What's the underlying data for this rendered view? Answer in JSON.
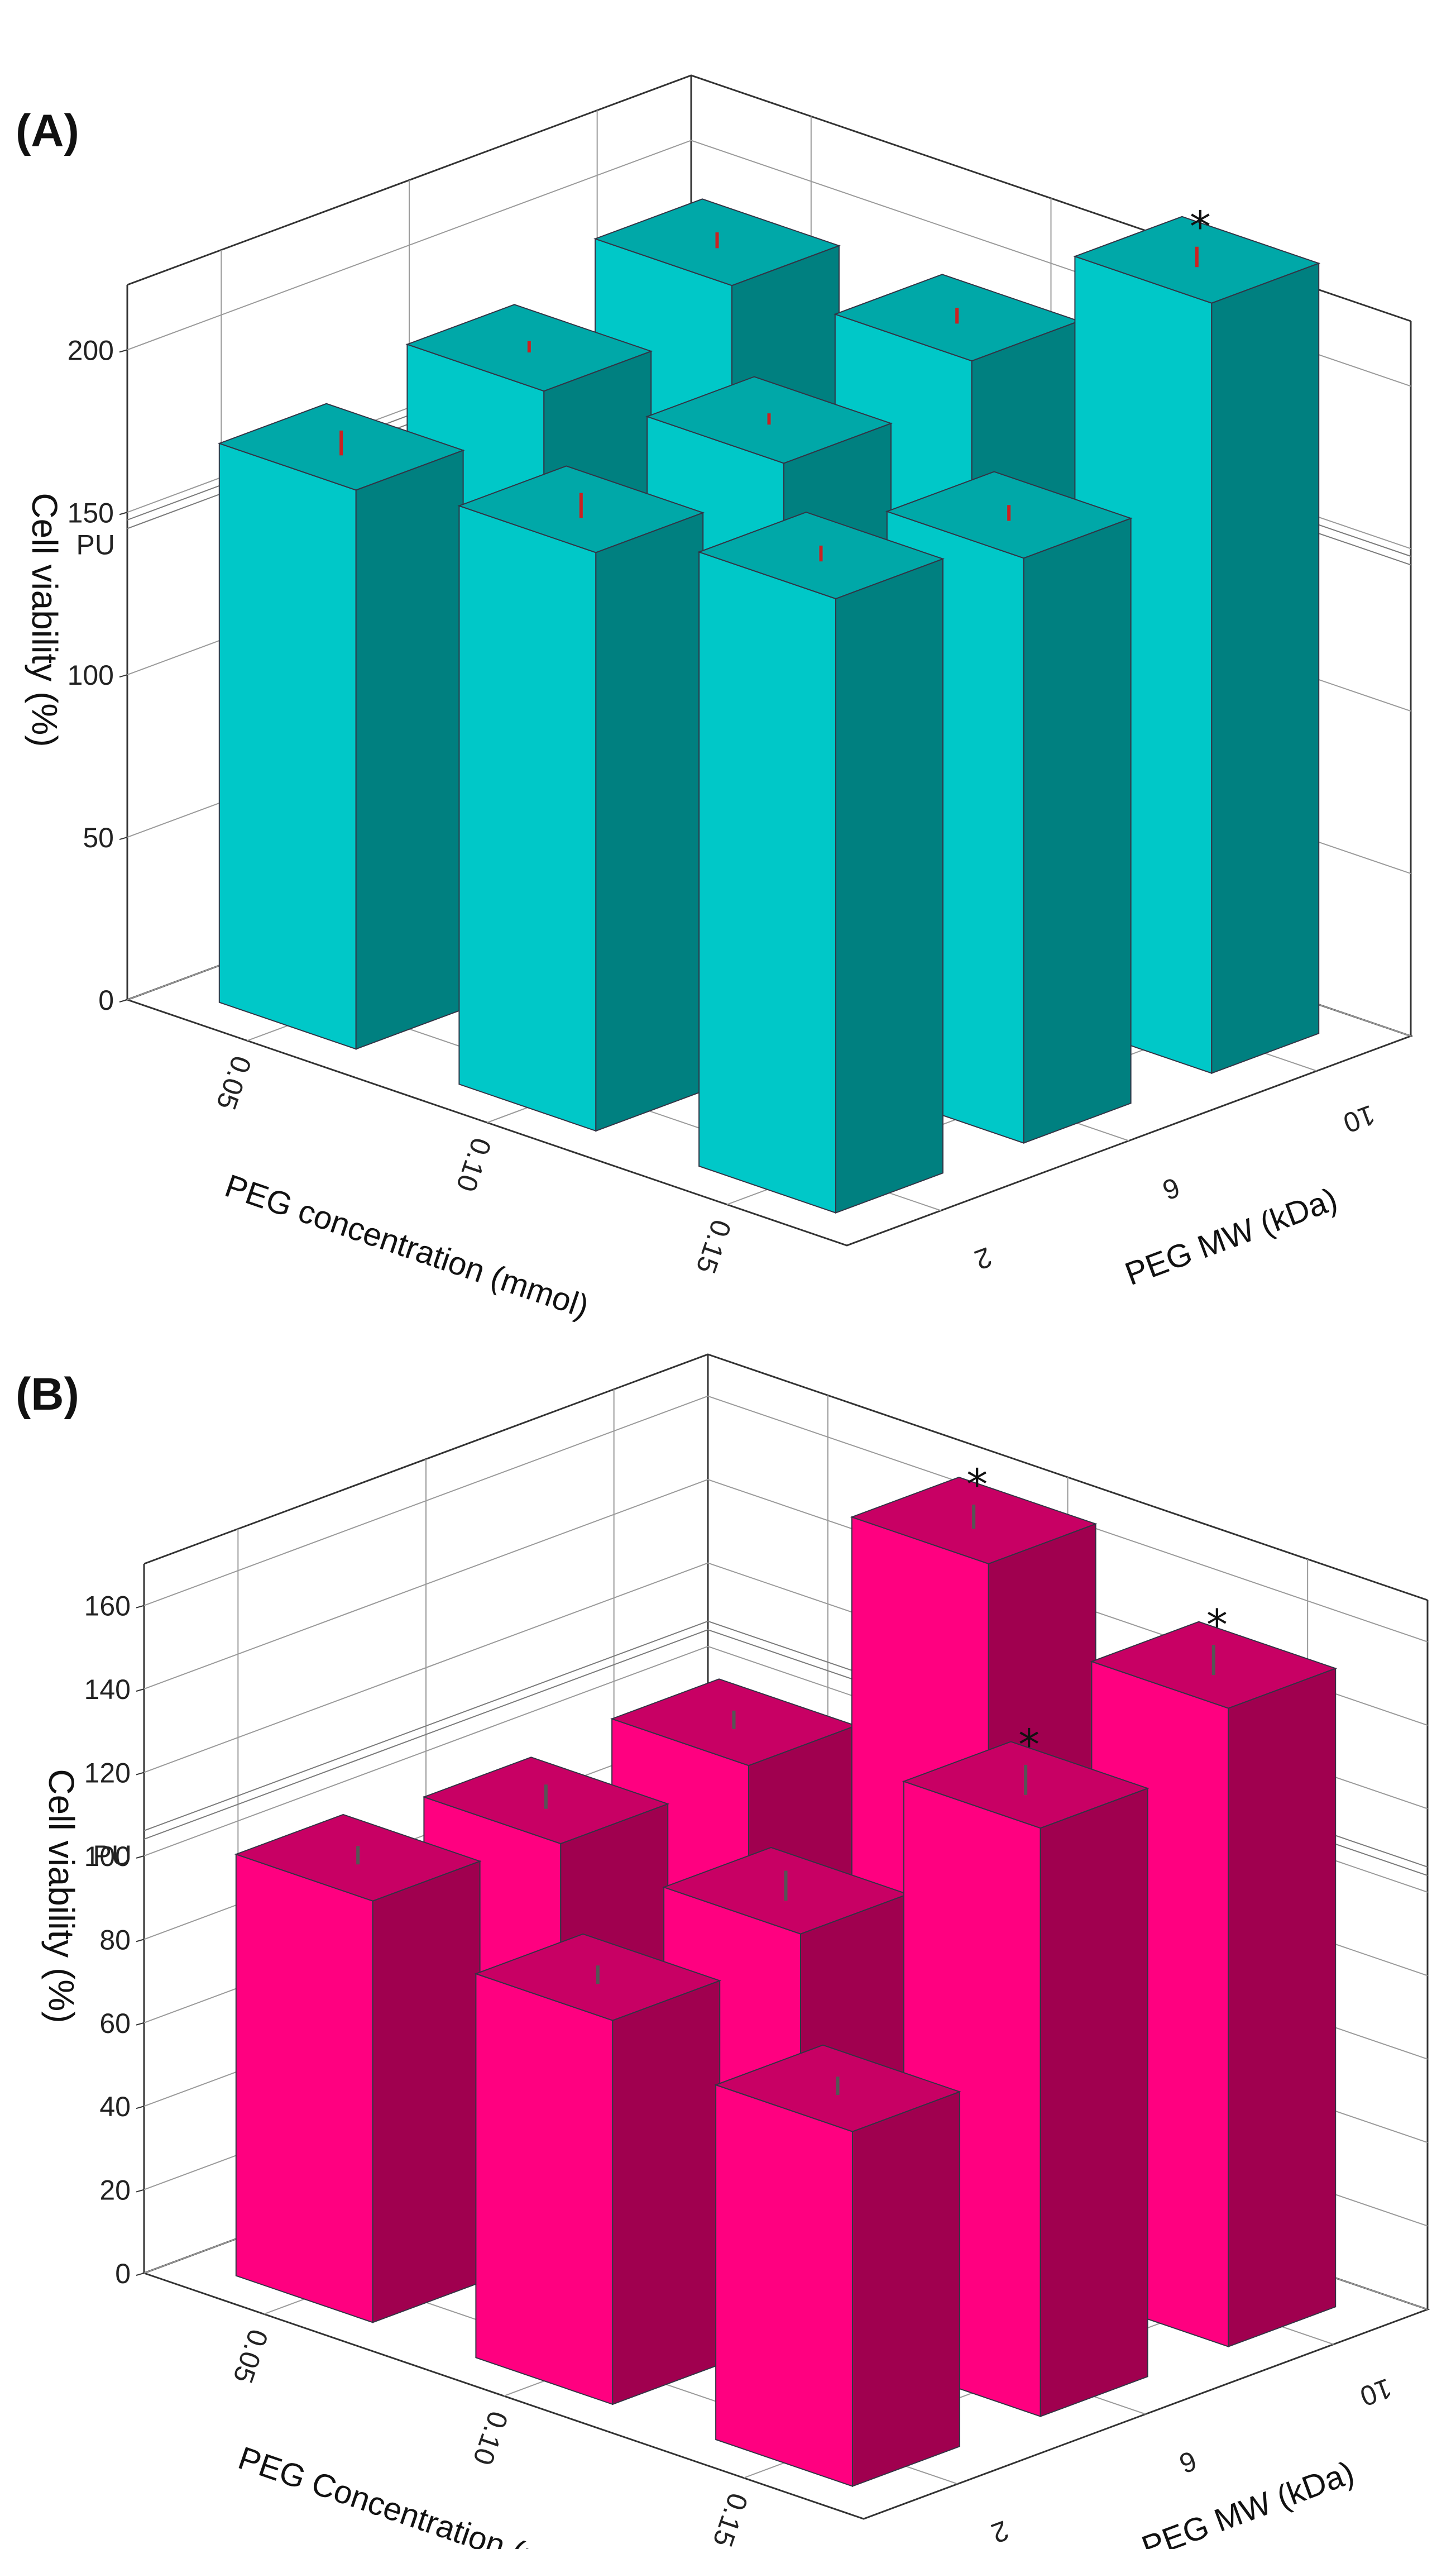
{
  "chart_data": [
    {
      "type": "bar3d",
      "panel_label": "(A)",
      "ylabel": "Cell viability (%)",
      "xlabel": "PEG concentration (mmol)",
      "zlabel": "PEG MW (kDa)",
      "x_categories": [
        "0.05",
        "0.10",
        "0.15"
      ],
      "z_categories": [
        "2",
        "6",
        "10"
      ],
      "ylim": [
        0,
        220
      ],
      "yticks": [
        0,
        50,
        100,
        150,
        200
      ],
      "reference": {
        "label": "PU",
        "value": 145
      },
      "colors": {
        "front": "#00c8c8",
        "side": "#008080",
        "top": "#00a8a8",
        "error": "#cc2020"
      },
      "bars": [
        {
          "conc": "0.05",
          "mw": "2",
          "value": 172,
          "error": 4,
          "significant": false
        },
        {
          "conc": "0.05",
          "mw": "6",
          "value": 181,
          "error": 1,
          "significant": false
        },
        {
          "conc": "0.05",
          "mw": "10",
          "value": 192,
          "error": 2,
          "significant": false
        },
        {
          "conc": "0.10",
          "mw": "2",
          "value": 178,
          "error": 4,
          "significant": false
        },
        {
          "conc": "0.10",
          "mw": "6",
          "value": 184,
          "error": 1,
          "significant": false
        },
        {
          "conc": "0.10",
          "mw": "10",
          "value": 194,
          "error": 2,
          "significant": false
        },
        {
          "conc": "0.15",
          "mw": "2",
          "value": 189,
          "error": 2,
          "significant": false
        },
        {
          "conc": "0.15",
          "mw": "6",
          "value": 180,
          "error": 2,
          "significant": false
        },
        {
          "conc": "0.15",
          "mw": "10",
          "value": 237,
          "error": 3,
          "significant": true
        }
      ],
      "significance_marker": "*"
    },
    {
      "type": "bar3d",
      "panel_label": "(B)",
      "ylabel": "Cell viability (%)",
      "xlabel": "PEG Concentration (mmol)",
      "zlabel": "PEG MW (kDa)",
      "x_categories": [
        "0.05",
        "0.10",
        "0.15"
      ],
      "z_categories": [
        "2",
        "6",
        "10"
      ],
      "ylim": [
        0,
        170
      ],
      "yticks": [
        0,
        20,
        40,
        60,
        80,
        100,
        120,
        140,
        160
      ],
      "reference": {
        "label": "PU",
        "value": 104
      },
      "colors": {
        "front": "#ff0080",
        "side": "#a0004f",
        "top": "#c80064",
        "error": "#555555"
      },
      "bars": [
        {
          "conc": "0.05",
          "mw": "2",
          "value": 101,
          "error": 2,
          "significant": false
        },
        {
          "conc": "0.05",
          "mw": "6",
          "value": 98,
          "error": 3,
          "significant": false
        },
        {
          "conc": "0.05",
          "mw": "10",
          "value": 100,
          "error": 2,
          "significant": false
        },
        {
          "conc": "0.10",
          "mw": "2",
          "value": 92,
          "error": 2,
          "significant": false
        },
        {
          "conc": "0.10",
          "mw": "6",
          "value": 96,
          "error": 4,
          "significant": false
        },
        {
          "conc": "0.10",
          "mw": "10",
          "value": 168,
          "error": 3,
          "significant": true
        },
        {
          "conc": "0.15",
          "mw": "2",
          "value": 85,
          "error": 2,
          "significant": false
        },
        {
          "conc": "0.15",
          "mw": "6",
          "value": 141,
          "error": 4,
          "significant": true
        },
        {
          "conc": "0.15",
          "mw": "10",
          "value": 153,
          "error": 4,
          "significant": true
        }
      ],
      "significance_marker": "*"
    }
  ]
}
